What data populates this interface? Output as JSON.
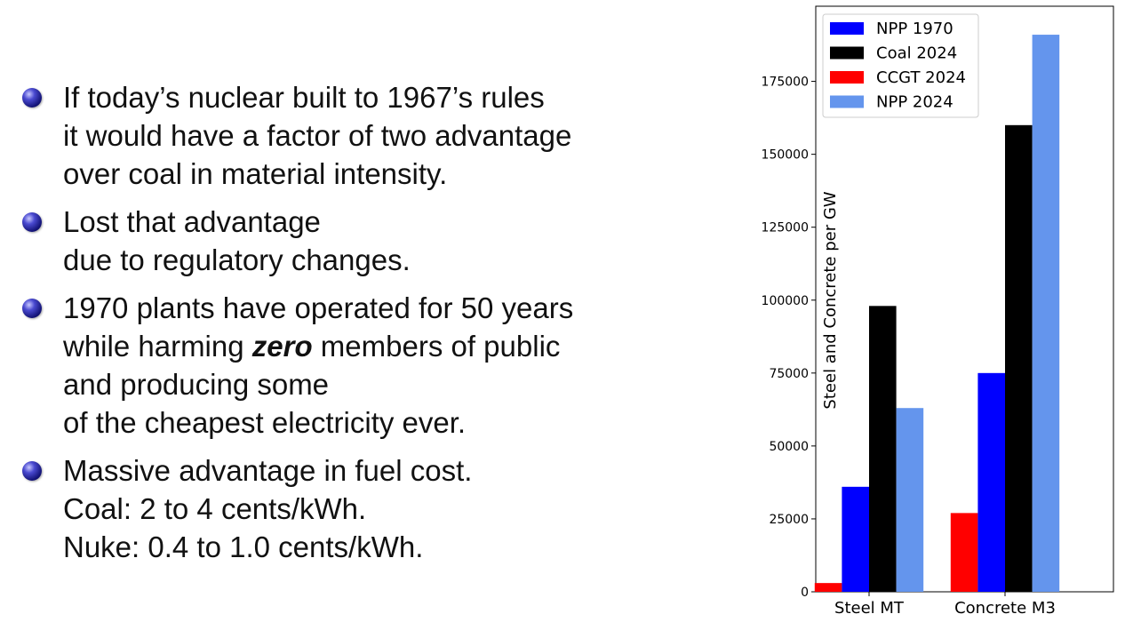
{
  "slide": {
    "bullets": [
      {
        "lines": [
          "If today’s nuclear built to 1967’s rules",
          "it would have a factor of two advantage",
          "over coal in material intensity."
        ]
      },
      {
        "lines": [
          "Lost that advantage",
          "due to regulatory changes."
        ]
      },
      {
        "line1": "1970 plants have operated for 50 years",
        "line2_before": "while harming ",
        "line2_emph": "zero",
        "line2_after": " members of public",
        "line3": "and producing some",
        "line4": "of the cheapest electricity ever."
      },
      {
        "lines": [
          "Massive advantage in fuel cost.",
          "Coal: 2 to 4 cents/kWh.",
          "Nuke: 0.4 to 1.0 cents/kWh."
        ]
      }
    ]
  },
  "chart_data": {
    "type": "bar",
    "title": "",
    "xlabel": "",
    "ylabel": "Steel and Concrete per GW",
    "categories": [
      "Steel MT",
      "Concrete M3"
    ],
    "series": [
      {
        "name": "CCGT 2024",
        "color": "#ff0000",
        "values": [
          3000,
          27000
        ]
      },
      {
        "name": "NPP 1970",
        "color": "#0000ff",
        "values": [
          36000,
          75000
        ]
      },
      {
        "name": "Coal 2024",
        "color": "#000000",
        "values": [
          98000,
          160000
        ]
      },
      {
        "name": "NPP  2024",
        "color": "#6495ed",
        "values": [
          63000,
          191000
        ]
      }
    ],
    "legend_order": [
      "NPP 1970",
      "Coal 2024",
      "CCGT 2024",
      "NPP  2024"
    ],
    "legend_position": "top-left",
    "ylim": [
      0,
      200000
    ],
    "yticks": [
      "0",
      "25000",
      "50000",
      "75000",
      "100000",
      "125000",
      "150000",
      "175000"
    ],
    "grid": false
  }
}
